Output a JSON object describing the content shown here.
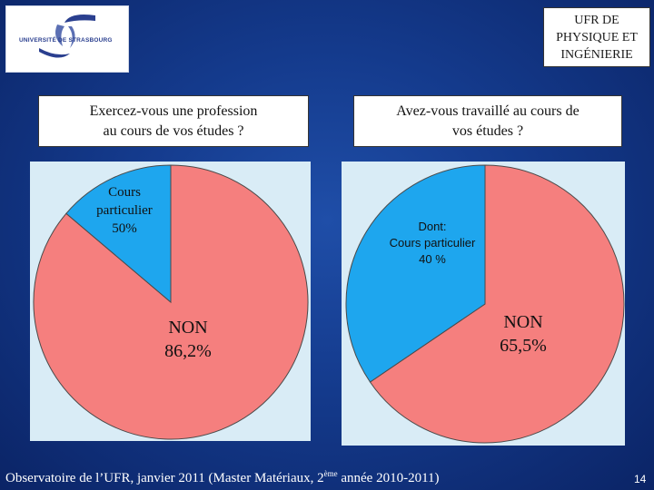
{
  "logo": {
    "text": "UNIVERSITÉ DE STRASBOURG",
    "colors": {
      "ink": "#2a3f8f",
      "accent": "#e87b2b"
    }
  },
  "header": {
    "ufr_lines": [
      "UFR DE",
      "PHYSIQUE ET",
      "INGÉNIERIE"
    ]
  },
  "questions": {
    "q1_lines": [
      "Exercez-vous une profession",
      "au cours de vos études ?"
    ],
    "q2_lines": [
      "Avez-vous travaillé au cours de",
      "vos études ?"
    ]
  },
  "charts": {
    "chart1": {
      "slice_non_lines": [
        "NON",
        "86,2%"
      ],
      "slice_cours_lines": [
        "Cours",
        "particulier",
        "50%"
      ]
    },
    "chart2": {
      "slice_non_lines": [
        "NON",
        "65,5%"
      ],
      "slice_dont_lines": [
        "Dont:",
        "Cours particulier",
        "40 %"
      ]
    }
  },
  "footer": {
    "text_before": "Observatoire de l’UFR, janvier 2011 (Master Matériaux, 2",
    "superscript": "ème",
    "text_after": " année 2010-2011)",
    "page_number": "14"
  },
  "colors": {
    "non": "#f57f7e",
    "oui": "#1ea6ee",
    "panel_bg": "#d9ecf6",
    "edge": "#4a4a4a"
  },
  "chart_data": [
    {
      "type": "pie",
      "title": "Exercez-vous une profession au cours de vos études ?",
      "slices": [
        {
          "label": "NON",
          "value": 86.2,
          "color": "#f57f7e"
        },
        {
          "label": "",
          "value": 13.8,
          "color": "#1ea6ee"
        }
      ],
      "annotations": [
        "Cours particulier 50%"
      ]
    },
    {
      "type": "pie",
      "title": "Avez-vous travaillé au cours de vos études ?",
      "slices": [
        {
          "label": "NON",
          "value": 65.5,
          "color": "#f57f7e"
        },
        {
          "label": "",
          "value": 34.5,
          "color": "#1ea6ee"
        }
      ],
      "annotations": [
        "Dont: Cours particulier 40 %"
      ]
    }
  ]
}
